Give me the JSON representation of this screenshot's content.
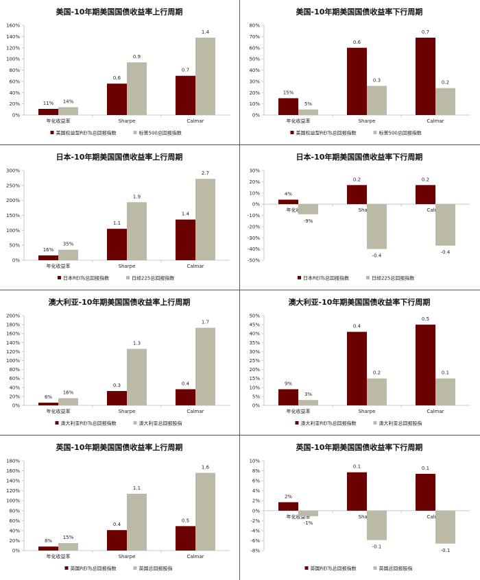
{
  "colors": {
    "series1": "#6b0000",
    "series2": "#bcb9a6",
    "axis": "#c8c8c8",
    "divider": "#555555"
  },
  "chart_data": [
    {
      "id": "us-up",
      "type": "bar",
      "title": "美国-10年期美国国债收益率上行周期",
      "categories": [
        "年化收益率",
        "Sharpe",
        "Calmar"
      ],
      "ylim": [
        0,
        1.6
      ],
      "yticks": [
        "0%",
        "20%",
        "40%",
        "60%",
        "80%",
        "100%",
        "120%",
        "140%",
        "160%"
      ],
      "series": [
        {
          "name": "美国权益型REITs总回报指数",
          "values": [
            0.11,
            0.56,
            0.7
          ],
          "labels": [
            "11%",
            "0.6",
            "0.7"
          ]
        },
        {
          "name": "标普500总回报指数",
          "values": [
            0.14,
            0.94,
            1.38
          ],
          "labels": [
            "14%",
            "0.9",
            "1.4"
          ]
        }
      ]
    },
    {
      "id": "us-down",
      "type": "bar",
      "title": "美国-10年期美国国债收益率下行周期",
      "categories": [
        "年化收益率",
        "Sharpe",
        "Calmar"
      ],
      "ylim": [
        0,
        0.8
      ],
      "yticks": [
        "0%",
        "10%",
        "20%",
        "30%",
        "40%",
        "50%",
        "60%",
        "70%",
        "80%"
      ],
      "series": [
        {
          "name": "美国权益型REITs总回报指数",
          "values": [
            0.15,
            0.6,
            0.69
          ],
          "labels": [
            "15%",
            "0.6",
            "0.7"
          ]
        },
        {
          "name": "标普500总回报指数",
          "values": [
            0.05,
            0.26,
            0.24
          ],
          "labels": [
            "5%",
            "0.3",
            "0.2"
          ]
        }
      ]
    },
    {
      "id": "jp-up",
      "type": "bar",
      "title": "日本-10年期美国国债收益率上行周期",
      "categories": [
        "年化收益率",
        "Sharpe",
        "Calmar"
      ],
      "ylim": [
        0,
        3.0
      ],
      "yticks": [
        "0%",
        "50%",
        "100%",
        "150%",
        "200%",
        "250%",
        "300%"
      ],
      "series": [
        {
          "name": "日本REITs总回报指数",
          "values": [
            0.16,
            1.05,
            1.36
          ],
          "labels": [
            "16%",
            "1.1",
            "1.4"
          ]
        },
        {
          "name": "日经225总回报指数",
          "values": [
            0.35,
            1.94,
            2.72
          ],
          "labels": [
            "35%",
            "1.9",
            "2.7"
          ]
        }
      ]
    },
    {
      "id": "jp-down",
      "type": "bar",
      "title": "日本-10年期美国国债收益率下行周期",
      "categories": [
        "年化收益率",
        "Sharpe",
        "Calmar"
      ],
      "ylim": [
        -0.5,
        0.3
      ],
      "yticks": [
        "-50%",
        "-40%",
        "-30%",
        "-20%",
        "-10%",
        "0%",
        "10%",
        "20%",
        "30%"
      ],
      "series": [
        {
          "name": "日本REITs总回报指数",
          "values": [
            0.04,
            0.17,
            0.17
          ],
          "labels": [
            "4%",
            "0.2",
            "0.2"
          ]
        },
        {
          "name": "日经225总回报指数",
          "values": [
            -0.09,
            -0.4,
            -0.37
          ],
          "labels": [
            "-9%",
            "-0.4",
            "-0.4"
          ]
        }
      ]
    },
    {
      "id": "au-up",
      "type": "bar",
      "title": "澳大利亚-10年期美国国债收益率上行周期",
      "categories": [
        "年化收益率",
        "Sharpe",
        "Calmar"
      ],
      "ylim": [
        0,
        2.0
      ],
      "yticks": [
        "0%",
        "20%",
        "40%",
        "60%",
        "80%",
        "100%",
        "120%",
        "140%",
        "160%",
        "180%",
        "200%"
      ],
      "series": [
        {
          "name": "澳大利亚REITs总回报指数",
          "values": [
            0.06,
            0.32,
            0.36
          ],
          "labels": [
            "6%",
            "0.3",
            "0.4"
          ]
        },
        {
          "name": "澳大利亚总回报股指",
          "values": [
            0.16,
            1.26,
            1.73
          ],
          "labels": [
            "16%",
            "1.3",
            "1.7"
          ]
        }
      ]
    },
    {
      "id": "au-down",
      "type": "bar",
      "title": "澳大利亚-10年期美国国债收益率下行周期",
      "categories": [
        "年化收益率",
        "Sharpe",
        "Calmar"
      ],
      "ylim": [
        0,
        0.5
      ],
      "yticks": [
        "0%",
        "5%",
        "10%",
        "15%",
        "20%",
        "25%",
        "30%",
        "35%",
        "40%",
        "45%",
        "50%"
      ],
      "series": [
        {
          "name": "澳大利亚REITs总回报指数",
          "values": [
            0.09,
            0.41,
            0.45
          ],
          "labels": [
            "9%",
            "0.4",
            "0.5"
          ]
        },
        {
          "name": "澳大利亚总回报股指",
          "values": [
            0.03,
            0.15,
            0.15
          ],
          "labels": [
            "3%",
            "0.2",
            "0.1"
          ]
        }
      ]
    },
    {
      "id": "uk-up",
      "type": "bar",
      "title": "英国-10年期美国国债收益率上行周期",
      "categories": [
        "年化收益率",
        "Sharpe",
        "Calmar"
      ],
      "ylim": [
        0,
        1.8
      ],
      "yticks": [
        "0%",
        "20%",
        "40%",
        "60%",
        "80%",
        "100%",
        "120%",
        "140%",
        "160%",
        "180%"
      ],
      "series": [
        {
          "name": "英国REITs总回报指数",
          "values": [
            0.08,
            0.41,
            0.49
          ],
          "labels": [
            "8%",
            "0.4",
            "0.5"
          ]
        },
        {
          "name": "英国总回报股指",
          "values": [
            0.15,
            1.14,
            1.56
          ],
          "labels": [
            "15%",
            "1.1",
            "1.6"
          ]
        }
      ]
    },
    {
      "id": "uk-down",
      "type": "bar",
      "title": "英国-10年期美国国债收益率下行周期",
      "categories": [
        "年化收益率",
        "Sharpe",
        "Calmar"
      ],
      "ylim": [
        -0.08,
        0.1
      ],
      "yticks": [
        "-8%",
        "-6%",
        "-4%",
        "-2%",
        "0%",
        "2%",
        "4%",
        "6%",
        "8%",
        "10%"
      ],
      "series": [
        {
          "name": "英国REITs总回报指数",
          "values": [
            0.017,
            0.077,
            0.074
          ],
          "labels": [
            "2%",
            "0.1",
            "0.1"
          ]
        },
        {
          "name": "英国总回报股指",
          "values": [
            -0.011,
            -0.059,
            -0.066
          ],
          "labels": [
            "-1%",
            "-0.1",
            "-0.1"
          ]
        }
      ]
    }
  ]
}
